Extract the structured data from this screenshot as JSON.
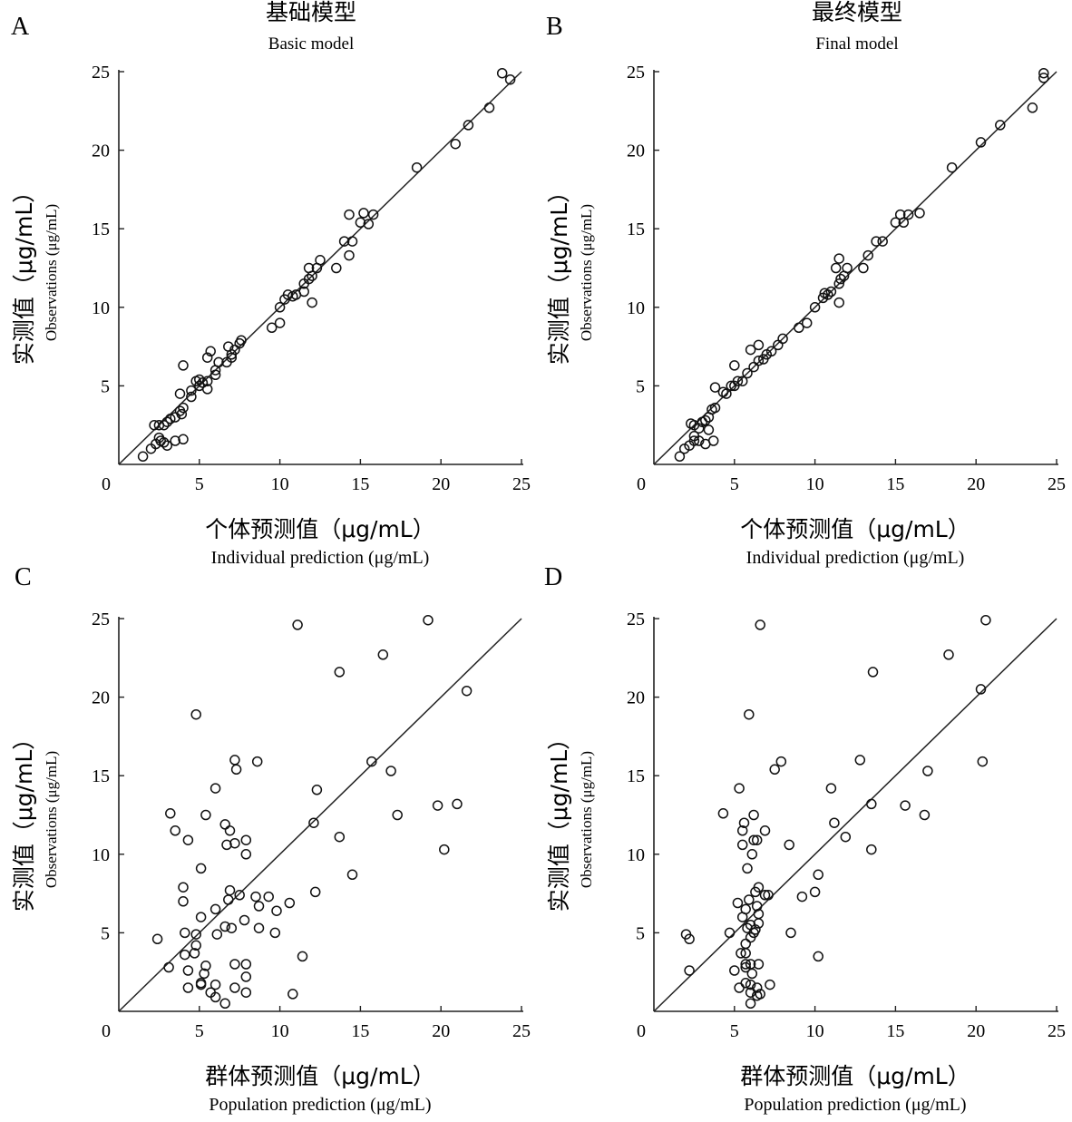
{
  "panels": [
    {
      "letter": "A",
      "title_zh": "基础模型",
      "title_en": "Basic model",
      "xlabel_zh": "个体预测值（μg/mL）",
      "xlabel_en": "Individual prediction (μg/mL)",
      "ylabel_zh": "实测值（μg/mL）",
      "ylabel_en": "Observations (μg/mL)"
    },
    {
      "letter": "B",
      "title_zh": "最终模型",
      "title_en": "Final model",
      "xlabel_zh": "个体预测值（μg/mL）",
      "xlabel_en": "Individual prediction (μg/mL)",
      "ylabel_zh": "实测值（μg/mL）",
      "ylabel_en": "Observations (μg/mL)"
    },
    {
      "letter": "C",
      "title_zh": "",
      "title_en": "",
      "xlabel_zh": "群体预测值（μg/mL）",
      "xlabel_en": "Population prediction (μg/mL)",
      "ylabel_zh": "实测值（μg/mL）",
      "ylabel_en": "Observations (μg/mL)"
    },
    {
      "letter": "D",
      "title_zh": "",
      "title_en": "",
      "xlabel_zh": "群体预测值（μg/mL）",
      "xlabel_en": "Population prediction (μg/mL)",
      "ylabel_zh": "实测值（μg/mL）",
      "ylabel_en": "Observations (μg/mL)"
    }
  ],
  "chart_data": [
    {
      "type": "scatter",
      "title": "基础模型 Basic model",
      "xlabel": "个体预测值（μg/mL） Individual prediction (μg/mL)",
      "ylabel": "实测值（μg/mL） Observations (μg/mL)",
      "xlim": [
        0,
        25
      ],
      "ylim": [
        0,
        25
      ],
      "xticks": [
        0,
        5,
        10,
        15,
        20,
        25
      ],
      "yticks": [
        5,
        10,
        15,
        20,
        25
      ],
      "reference_line": "y = x",
      "points": [
        [
          1.5,
          0.5
        ],
        [
          2.0,
          1.0
        ],
        [
          2.3,
          1.3
        ],
        [
          2.5,
          1.7
        ],
        [
          2.6,
          1.5
        ],
        [
          2.8,
          1.4
        ],
        [
          3.0,
          1.2
        ],
        [
          3.5,
          1.5
        ],
        [
          4.0,
          1.6
        ],
        [
          2.2,
          2.5
        ],
        [
          2.5,
          2.5
        ],
        [
          2.8,
          2.5
        ],
        [
          3.0,
          2.7
        ],
        [
          3.2,
          2.9
        ],
        [
          3.5,
          3.0
        ],
        [
          3.8,
          3.4
        ],
        [
          4.0,
          3.6
        ],
        [
          3.9,
          3.2
        ],
        [
          4.5,
          4.3
        ],
        [
          3.8,
          4.5
        ],
        [
          4.0,
          6.3
        ],
        [
          4.5,
          4.7
        ],
        [
          4.8,
          5.3
        ],
        [
          5.0,
          5.0
        ],
        [
          5.2,
          5.2
        ],
        [
          5.5,
          5.3
        ],
        [
          5.5,
          4.8
        ],
        [
          5.0,
          5.4
        ],
        [
          5.5,
          6.8
        ],
        [
          5.7,
          7.2
        ],
        [
          6.0,
          6.0
        ],
        [
          6.0,
          5.7
        ],
        [
          6.2,
          6.5
        ],
        [
          6.7,
          6.5
        ],
        [
          6.8,
          7.5
        ],
        [
          7.0,
          7.0
        ],
        [
          7.2,
          7.3
        ],
        [
          7.5,
          7.7
        ],
        [
          7.6,
          7.9
        ],
        [
          7.0,
          6.8
        ],
        [
          9.5,
          8.7
        ],
        [
          10.0,
          9.0
        ],
        [
          10.0,
          10.0
        ],
        [
          10.3,
          10.5
        ],
        [
          10.5,
          10.8
        ],
        [
          10.8,
          10.7
        ],
        [
          11.0,
          10.8
        ],
        [
          11.5,
          11.5
        ],
        [
          11.8,
          11.8
        ],
        [
          11.5,
          11.0
        ],
        [
          12.0,
          12.0
        ],
        [
          11.8,
          12.5
        ],
        [
          12.3,
          12.5
        ],
        [
          12.5,
          13.0
        ],
        [
          12.0,
          10.3
        ],
        [
          13.5,
          12.5
        ],
        [
          14.0,
          14.2
        ],
        [
          14.5,
          14.2
        ],
        [
          14.3,
          13.3
        ],
        [
          14.3,
          15.9
        ],
        [
          15.0,
          15.4
        ],
        [
          15.2,
          16.0
        ],
        [
          15.5,
          15.3
        ],
        [
          15.8,
          15.9
        ],
        [
          18.5,
          18.9
        ],
        [
          20.9,
          20.4
        ],
        [
          21.7,
          21.6
        ],
        [
          23.0,
          22.7
        ],
        [
          23.8,
          24.9
        ],
        [
          24.3,
          24.5
        ]
      ]
    },
    {
      "type": "scatter",
      "title": "最终模型 Final model",
      "xlabel": "个体预测值（μg/mL） Individual prediction (μg/mL)",
      "ylabel": "实测值（μg/mL） Observations (μg/mL)",
      "xlim": [
        0,
        25
      ],
      "ylim": [
        0,
        25
      ],
      "xticks": [
        0,
        5,
        10,
        15,
        20,
        25
      ],
      "yticks": [
        5,
        10,
        15,
        20,
        25
      ],
      "reference_line": "y = x",
      "points": [
        [
          1.6,
          0.5
        ],
        [
          1.9,
          1.0
        ],
        [
          2.2,
          1.2
        ],
        [
          2.5,
          1.5
        ],
        [
          2.5,
          1.8
        ],
        [
          2.8,
          1.5
        ],
        [
          3.2,
          1.3
        ],
        [
          3.7,
          1.5
        ],
        [
          2.3,
          2.6
        ],
        [
          2.5,
          2.5
        ],
        [
          2.8,
          2.3
        ],
        [
          3.0,
          2.7
        ],
        [
          3.2,
          2.8
        ],
        [
          3.4,
          3.0
        ],
        [
          3.6,
          3.5
        ],
        [
          3.8,
          3.6
        ],
        [
          3.4,
          2.2
        ],
        [
          4.5,
          4.5
        ],
        [
          3.8,
          4.9
        ],
        [
          4.3,
          4.6
        ],
        [
          4.8,
          5.0
        ],
        [
          5.0,
          5.0
        ],
        [
          5.2,
          5.3
        ],
        [
          5.5,
          5.3
        ],
        [
          5.0,
          6.3
        ],
        [
          6.0,
          7.3
        ],
        [
          6.5,
          7.6
        ],
        [
          5.8,
          5.8
        ],
        [
          6.2,
          6.2
        ],
        [
          6.5,
          6.6
        ],
        [
          7.0,
          7.0
        ],
        [
          7.3,
          7.2
        ],
        [
          7.7,
          7.6
        ],
        [
          8.0,
          8.0
        ],
        [
          6.8,
          6.7
        ],
        [
          9.0,
          8.7
        ],
        [
          9.5,
          9.0
        ],
        [
          10.0,
          10.0
        ],
        [
          10.5,
          10.6
        ],
        [
          10.6,
          10.9
        ],
        [
          10.8,
          10.8
        ],
        [
          11.0,
          11.0
        ],
        [
          11.5,
          11.5
        ],
        [
          11.6,
          11.8
        ],
        [
          11.8,
          12.0
        ],
        [
          11.3,
          12.5
        ],
        [
          12.0,
          12.5
        ],
        [
          11.5,
          13.1
        ],
        [
          11.5,
          10.3
        ],
        [
          13.0,
          12.5
        ],
        [
          13.3,
          13.3
        ],
        [
          13.8,
          14.2
        ],
        [
          14.2,
          14.2
        ],
        [
          15.0,
          15.4
        ],
        [
          15.3,
          15.9
        ],
        [
          15.5,
          15.4
        ],
        [
          15.8,
          15.9
        ],
        [
          16.5,
          16.0
        ],
        [
          18.5,
          18.9
        ],
        [
          20.3,
          20.5
        ],
        [
          21.5,
          21.6
        ],
        [
          23.5,
          22.7
        ],
        [
          24.2,
          24.9
        ],
        [
          24.2,
          24.6
        ]
      ]
    },
    {
      "type": "scatter",
      "title": "",
      "xlabel": "群体预测值（μg/mL） Population prediction (μg/mL)",
      "ylabel": "实测值（μg/mL） Observations (μg/mL)",
      "xlim": [
        0,
        25
      ],
      "ylim": [
        0,
        25
      ],
      "xticks": [
        0,
        5,
        10,
        15,
        20,
        25
      ],
      "yticks": [
        5,
        10,
        15,
        20,
        25
      ],
      "reference_line": "y = x",
      "points": [
        [
          11.1,
          24.6
        ],
        [
          19.2,
          24.9
        ],
        [
          16.4,
          22.7
        ],
        [
          13.7,
          21.6
        ],
        [
          21.6,
          20.4
        ],
        [
          4.8,
          18.9
        ],
        [
          7.2,
          16.0
        ],
        [
          8.6,
          15.9
        ],
        [
          15.7,
          15.9
        ],
        [
          7.3,
          15.4
        ],
        [
          16.9,
          15.3
        ],
        [
          6.0,
          14.2
        ],
        [
          12.3,
          14.1
        ],
        [
          19.8,
          13.1
        ],
        [
          21.0,
          13.2
        ],
        [
          3.2,
          12.6
        ],
        [
          5.4,
          12.5
        ],
        [
          17.3,
          12.5
        ],
        [
          12.1,
          12.0
        ],
        [
          6.6,
          11.9
        ],
        [
          3.5,
          11.5
        ],
        [
          6.9,
          11.5
        ],
        [
          13.7,
          11.1
        ],
        [
          4.3,
          10.9
        ],
        [
          7.9,
          10.9
        ],
        [
          6.7,
          10.6
        ],
        [
          7.2,
          10.7
        ],
        [
          7.9,
          10.0
        ],
        [
          20.2,
          10.3
        ],
        [
          5.1,
          9.1
        ],
        [
          14.5,
          8.7
        ],
        [
          4.0,
          7.9
        ],
        [
          6.9,
          7.7
        ],
        [
          12.2,
          7.6
        ],
        [
          7.5,
          7.4
        ],
        [
          8.5,
          7.3
        ],
        [
          9.3,
          7.3
        ],
        [
          4.0,
          7.0
        ],
        [
          6.8,
          7.1
        ],
        [
          10.6,
          6.9
        ],
        [
          6.0,
          6.5
        ],
        [
          8.7,
          6.7
        ],
        [
          9.8,
          6.4
        ],
        [
          5.1,
          6.0
        ],
        [
          7.8,
          5.8
        ],
        [
          6.6,
          5.4
        ],
        [
          7.0,
          5.3
        ],
        [
          8.7,
          5.3
        ],
        [
          9.7,
          5.0
        ],
        [
          4.1,
          5.0
        ],
        [
          4.8,
          4.9
        ],
        [
          6.1,
          4.9
        ],
        [
          2.4,
          4.6
        ],
        [
          4.8,
          4.2
        ],
        [
          4.1,
          3.6
        ],
        [
          4.7,
          3.7
        ],
        [
          11.4,
          3.5
        ],
        [
          3.1,
          2.8
        ],
        [
          5.4,
          2.9
        ],
        [
          7.2,
          3.0
        ],
        [
          7.9,
          3.0
        ],
        [
          4.3,
          2.6
        ],
        [
          5.3,
          2.4
        ],
        [
          7.9,
          2.2
        ],
        [
          5.1,
          1.8
        ],
        [
          5.1,
          1.7
        ],
        [
          6.0,
          1.7
        ],
        [
          7.2,
          1.5
        ],
        [
          4.3,
          1.5
        ],
        [
          5.7,
          1.2
        ],
        [
          7.9,
          1.2
        ],
        [
          6.0,
          0.9
        ],
        [
          10.8,
          1.1
        ],
        [
          6.6,
          0.5
        ]
      ]
    },
    {
      "type": "scatter",
      "title": "",
      "xlabel": "群体预测值（μg/mL） Population prediction (μg/mL)",
      "ylabel": "实测值（μg/mL） Observations (μg/mL)",
      "xlim": [
        0,
        25
      ],
      "ylim": [
        0,
        25
      ],
      "xticks": [
        0,
        5,
        10,
        15,
        20,
        25
      ],
      "yticks": [
        5,
        10,
        15,
        20,
        25
      ],
      "reference_line": "y = x",
      "points": [
        [
          6.6,
          24.6
        ],
        [
          20.6,
          24.9
        ],
        [
          18.3,
          22.7
        ],
        [
          13.6,
          21.6
        ],
        [
          20.3,
          20.5
        ],
        [
          5.9,
          18.9
        ],
        [
          12.8,
          16.0
        ],
        [
          7.9,
          15.9
        ],
        [
          20.4,
          15.9
        ],
        [
          7.5,
          15.4
        ],
        [
          17.0,
          15.3
        ],
        [
          5.3,
          14.2
        ],
        [
          11.0,
          14.2
        ],
        [
          13.5,
          13.2
        ],
        [
          15.6,
          13.1
        ],
        [
          4.3,
          12.6
        ],
        [
          6.2,
          12.5
        ],
        [
          16.8,
          12.5
        ],
        [
          5.6,
          12.0
        ],
        [
          11.2,
          12.0
        ],
        [
          5.5,
          11.5
        ],
        [
          6.9,
          11.5
        ],
        [
          11.9,
          11.1
        ],
        [
          6.2,
          10.9
        ],
        [
          6.4,
          10.9
        ],
        [
          5.5,
          10.6
        ],
        [
          8.4,
          10.6
        ],
        [
          6.1,
          10.0
        ],
        [
          13.5,
          10.3
        ],
        [
          5.8,
          9.1
        ],
        [
          10.2,
          8.7
        ],
        [
          6.5,
          7.9
        ],
        [
          6.3,
          7.6
        ],
        [
          10.0,
          7.6
        ],
        [
          6.9,
          7.4
        ],
        [
          7.1,
          7.4
        ],
        [
          9.2,
          7.3
        ],
        [
          5.9,
          7.1
        ],
        [
          5.2,
          6.9
        ],
        [
          6.4,
          6.7
        ],
        [
          5.7,
          6.5
        ],
        [
          6.5,
          6.2
        ],
        [
          5.5,
          6.0
        ],
        [
          6.5,
          5.6
        ],
        [
          6.0,
          5.5
        ],
        [
          5.8,
          5.3
        ],
        [
          6.3,
          5.2
        ],
        [
          6.2,
          5.0
        ],
        [
          4.7,
          5.0
        ],
        [
          8.5,
          5.0
        ],
        [
          2.0,
          4.9
        ],
        [
          2.2,
          4.6
        ],
        [
          6.0,
          4.7
        ],
        [
          5.7,
          4.3
        ],
        [
          5.4,
          3.7
        ],
        [
          5.7,
          3.7
        ],
        [
          10.2,
          3.5
        ],
        [
          5.7,
          3.0
        ],
        [
          6.0,
          3.0
        ],
        [
          6.5,
          3.0
        ],
        [
          5.7,
          2.8
        ],
        [
          2.2,
          2.6
        ],
        [
          5.0,
          2.6
        ],
        [
          6.1,
          2.4
        ],
        [
          5.7,
          1.8
        ],
        [
          6.0,
          1.7
        ],
        [
          6.4,
          1.5
        ],
        [
          7.2,
          1.7
        ],
        [
          5.3,
          1.5
        ],
        [
          6.0,
          1.2
        ],
        [
          6.4,
          1.0
        ],
        [
          6.6,
          1.1
        ],
        [
          6.0,
          0.5
        ]
      ]
    }
  ]
}
